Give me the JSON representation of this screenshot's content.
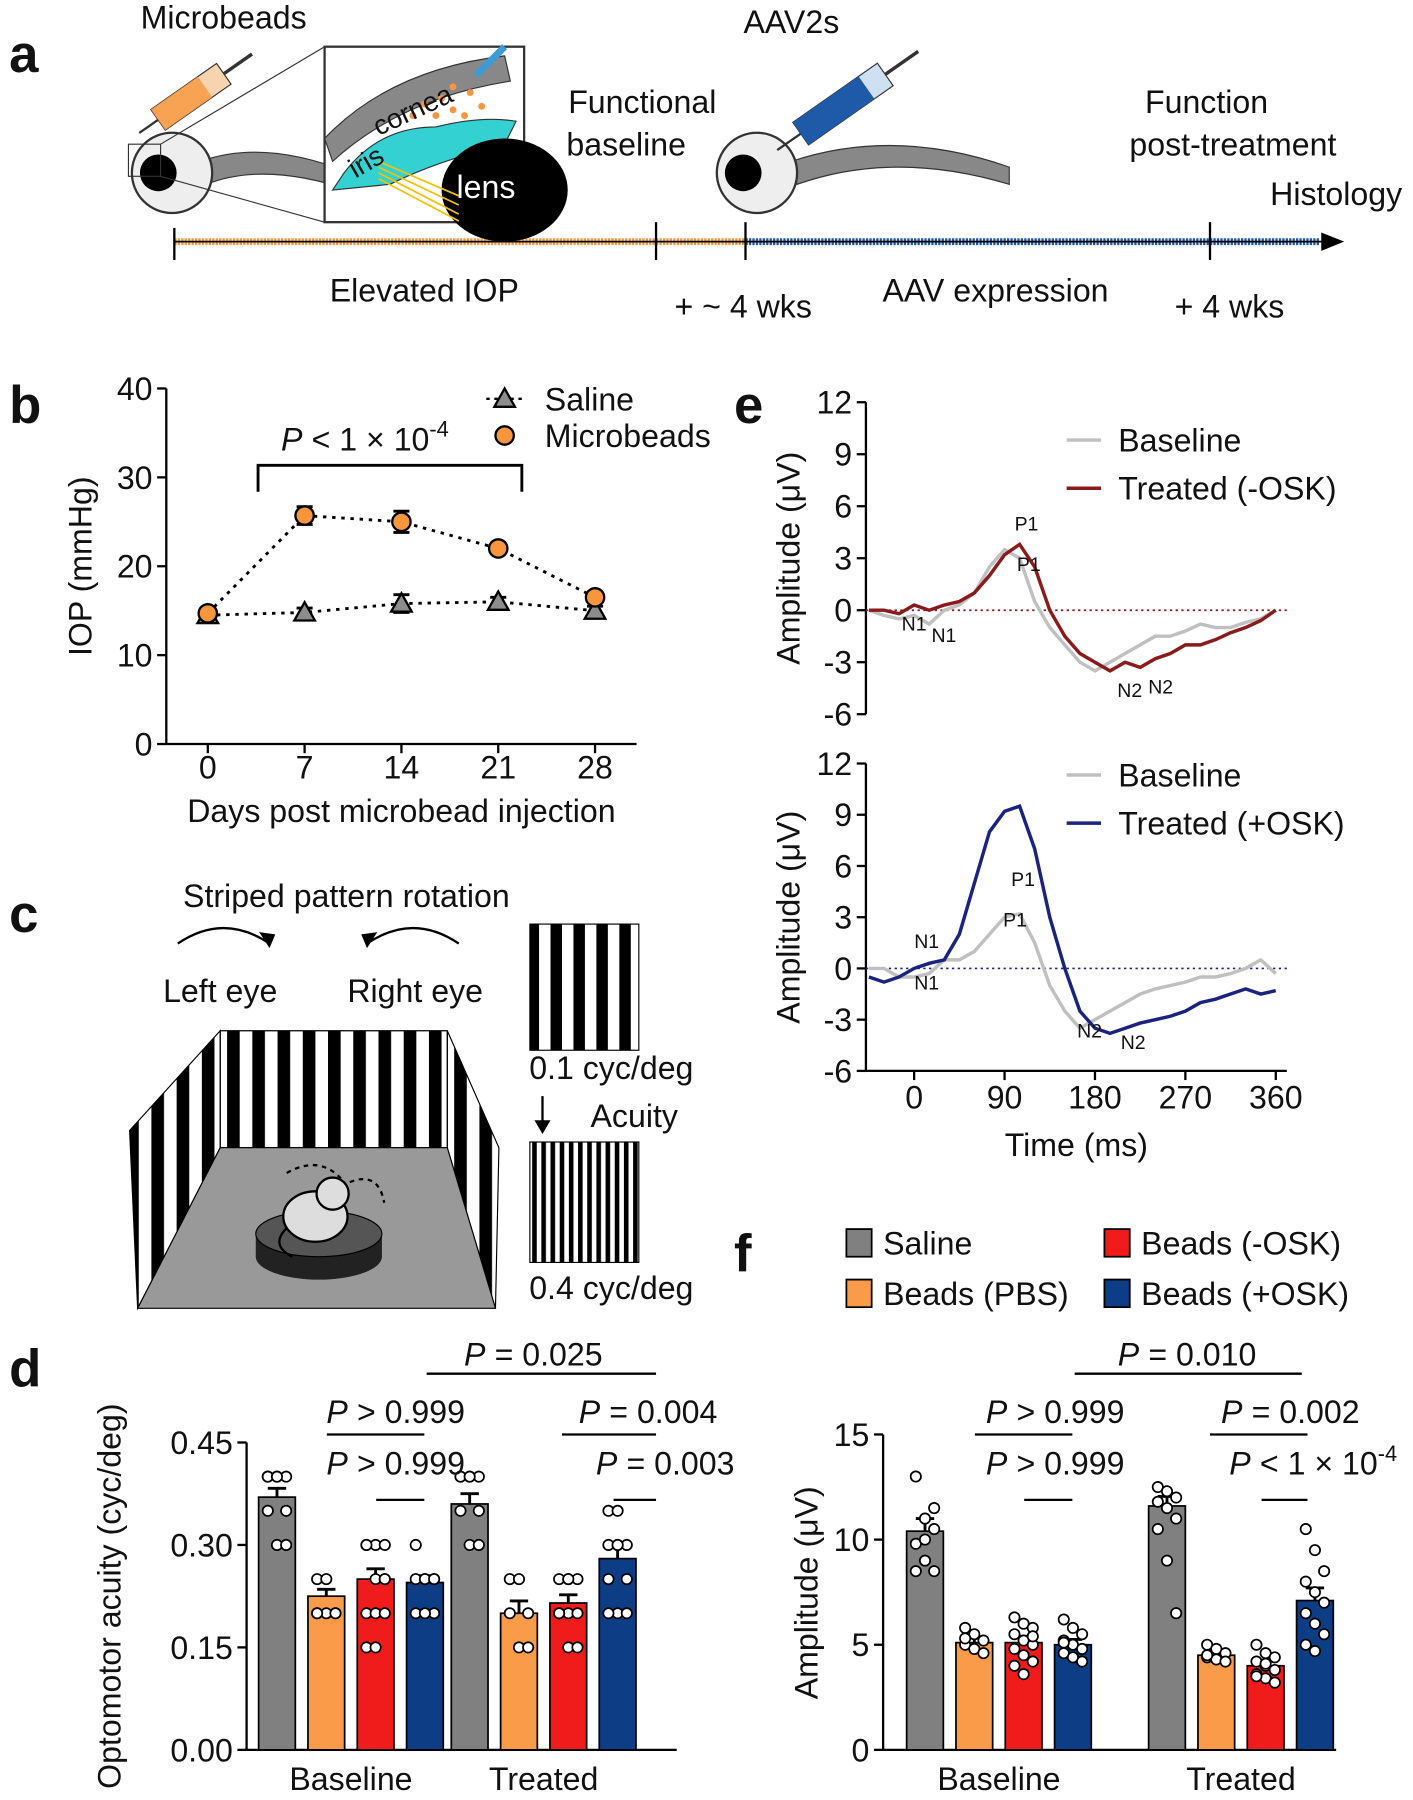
{
  "panel_labels": [
    "a",
    "b",
    "c",
    "d",
    "e",
    "f"
  ],
  "schematic_a": {
    "microbeads": "Microbeads",
    "aav": "AAV2s",
    "inset": [
      "cornea",
      "iris",
      "lens"
    ],
    "functional_baseline": [
      "Functional",
      "baseline"
    ],
    "function_post": [
      "Function",
      "post-treatment"
    ],
    "histology": "Histology",
    "elevated": "Elevated IOP",
    "wks1": "+ ~ 4 wks",
    "aav_expression": "AAV expression",
    "wks2": "+ 4 wks"
  },
  "schematic_c": {
    "title": "Striped pattern rotation",
    "left": "Left eye",
    "right": "Right eye",
    "low": "0.1 cyc/deg",
    "acuity": "Acuity",
    "high": "0.4 cyc/deg"
  },
  "chart_data": [
    {
      "type": "line",
      "x_label": "Days post microbead injection",
      "y_label": "IOP (mmHg)",
      "x": [
        0,
        7,
        14,
        21,
        28
      ],
      "xlim": [
        -3,
        31
      ],
      "xticks": [
        0,
        7,
        14,
        21,
        28
      ],
      "ylim": [
        0,
        40
      ],
      "yticks": [
        0,
        10,
        20,
        30,
        40
      ],
      "series": [
        {
          "name": "Saline",
          "color": "#8c8c8c",
          "marker": "triangle",
          "values": [
            14.5,
            14.8,
            15.8,
            16,
            15
          ],
          "errors": [
            0.5,
            0.5,
            1,
            0.5,
            0.5
          ]
        },
        {
          "name": "Microbeads",
          "color": "#f7963c",
          "marker": "circle",
          "values": [
            14.7,
            25.7,
            25,
            22,
            16.5
          ],
          "errors": [
            0.5,
            1,
            1.2,
            0.5,
            0.5
          ]
        }
      ],
      "annotation": {
        "p": "P",
        "text": "< 1 × 10",
        "exponent": "-4"
      }
    },
    {
      "type": "line",
      "y_label": "Amplitude (μV)",
      "x": [
        -45,
        -30,
        -15,
        0,
        15,
        30,
        45,
        60,
        75,
        90,
        105,
        120,
        135,
        150,
        165,
        180,
        195,
        210,
        225,
        240,
        255,
        270,
        285,
        300,
        315,
        330,
        345,
        360
      ],
      "xlim": [
        -48,
        371
      ],
      "ylim": [
        -6,
        12
      ],
      "yticks": [
        -6,
        -3,
        0,
        3,
        6,
        9,
        12
      ],
      "series": [
        {
          "name": "Baseline",
          "color": "#c0c0c0",
          "values": [
            0,
            -0.3,
            -0.5,
            -0.3,
            -0.8,
            0,
            0.3,
            1,
            2.5,
            3.5,
            3,
            0.5,
            -1,
            -2,
            -3,
            -3.5,
            -3,
            -2.5,
            -2,
            -1.5,
            -1.5,
            -1.2,
            -0.8,
            -1,
            -1,
            -0.7,
            -0.5,
            0
          ]
        },
        {
          "name": "Treated (-OSK)",
          "color": "#8b1a1a",
          "values": [
            0,
            0,
            -0.2,
            0.3,
            0,
            0.3,
            0.5,
            1,
            2,
            3.2,
            3.8,
            2.5,
            0,
            -1.5,
            -2.5,
            -3,
            -3.5,
            -3,
            -3.3,
            -2.8,
            -2.5,
            -2,
            -2,
            -1.7,
            -1.3,
            -1,
            -0.6,
            0
          ]
        }
      ],
      "peak_labels": [
        "P1",
        "P1",
        "N1",
        "N1",
        "N2",
        "N2"
      ]
    },
    {
      "type": "line",
      "y_label": "Amplitude (μV)",
      "x_label": "Time (ms)",
      "x": [
        -45,
        -30,
        -15,
        0,
        15,
        30,
        45,
        60,
        75,
        90,
        105,
        120,
        135,
        150,
        165,
        180,
        195,
        210,
        225,
        240,
        255,
        270,
        285,
        300,
        315,
        330,
        345,
        360
      ],
      "xlim": [
        -48,
        371
      ],
      "xticks": [
        0,
        90,
        180,
        270,
        360
      ],
      "ylim": [
        -6,
        12
      ],
      "yticks": [
        -6,
        -3,
        0,
        3,
        6,
        9,
        12
      ],
      "series": [
        {
          "name": "Baseline",
          "color": "#c0c0c0",
          "values": [
            0,
            0,
            -0.5,
            -0.5,
            -0.3,
            0.5,
            0.5,
            1,
            2,
            3,
            3.2,
            1.5,
            -1,
            -2.5,
            -3.5,
            -3,
            -2.5,
            -2,
            -1.5,
            -1.2,
            -1,
            -0.8,
            -0.5,
            -0.5,
            -0.3,
            0,
            0.5,
            -0.3
          ]
        },
        {
          "name": "Treated (+OSK)",
          "color": "#1a237e",
          "values": [
            -0.5,
            -0.8,
            -0.5,
            0,
            0.3,
            0.5,
            2,
            5,
            8,
            9.2,
            9.5,
            7,
            3,
            0,
            -2.5,
            -3.5,
            -3.8,
            -3.5,
            -3.2,
            -3,
            -2.8,
            -2.5,
            -2,
            -1.8,
            -1.5,
            -1.2,
            -1.5,
            -1.3
          ]
        }
      ],
      "peak_labels": [
        "P1",
        "P1",
        "N1",
        "N1",
        "N2",
        "N2"
      ]
    },
    {
      "type": "bar",
      "y_label": "Optomotor acuity (cyc/deg)",
      "categories": [
        "Baseline",
        "Treated"
      ],
      "ylim": [
        0,
        0.45
      ],
      "yticks": [
        {
          "value": 0,
          "label": "0.00"
        },
        0.15,
        {
          "value": 0.3,
          "label": "0.30"
        },
        0.45
      ],
      "series": [
        {
          "color": "#808080",
          "values": [
            0.37,
            0.36
          ],
          "errors": [
            0.013,
            0.015
          ],
          "points": [
            [
              0.4,
              0.4,
              0.4,
              0.4,
              0.4,
              0.35,
              0.35,
              0.3,
              0.3
            ],
            [
              0.4,
              0.4,
              0.4,
              0.4,
              0.4,
              0.35,
              0.35,
              0.3,
              0.3
            ]
          ]
        },
        {
          "color": "#fa9b4a",
          "values": [
            0.225,
            0.2
          ],
          "errors": [
            0.01,
            0.018
          ],
          "points": [
            [
              0.25,
              0.25,
              0.2,
              0.2,
              0.2,
              0.2,
              0.2
            ],
            [
              0.25,
              0.25,
              0.2,
              0.2,
              0.15,
              0.15
            ]
          ]
        },
        {
          "color": "#f01c1c",
          "values": [
            0.25,
            0.215
          ],
          "errors": [
            0.015,
            0.012
          ],
          "points": [
            [
              0.3,
              0.3,
              0.3,
              0.3,
              0.25,
              0.25,
              0.2,
              0.2,
              0.2,
              0.15,
              0.15,
              0.25
            ],
            [
              0.25,
              0.25,
              0.25,
              0.2,
              0.2,
              0.2,
              0.2,
              0.15,
              0.15,
              0.2,
              0.25
            ]
          ]
        },
        {
          "color": "#0d3e85",
          "values": [
            0.245,
            0.28
          ],
          "errors": [
            0.01,
            0.018
          ],
          "points": [
            [
              0.3,
              0.25,
              0.25,
              0.25,
              0.25,
              0.2,
              0.2,
              0.2,
              0.25
            ],
            [
              0.35,
              0.35,
              0.3,
              0.3,
              0.3,
              0.25,
              0.25,
              0.2,
              0.2,
              0.2,
              0.3
            ]
          ]
        }
      ],
      "comparisons": [
        {
          "p": "P",
          "text": "= 0.025"
        },
        {
          "p": "P",
          "text": "> 0.999"
        },
        {
          "p": "P",
          "text": "> 0.999"
        },
        {
          "p": "P",
          "text": "= 0.004"
        },
        {
          "p": "P",
          "text": "= 0.003"
        }
      ]
    },
    {
      "type": "bar",
      "y_label": "Amplitude (μV)",
      "categories": [
        "Baseline",
        "Treated"
      ],
      "ylim": [
        0,
        15
      ],
      "yticks": [
        0,
        5,
        10,
        15
      ],
      "series": [
        {
          "name": "Saline",
          "color": "#808080",
          "values": [
            10.4,
            11.6
          ],
          "errors": [
            0.6,
            0.45
          ],
          "points": [
            [
              13,
              11,
              10.5,
              9.8,
              9,
              8.5,
              8.5,
              10,
              11.5
            ],
            [
              12.5,
              12.3,
              12,
              11.8,
              11.5,
              11,
              10.5,
              9,
              6.5
            ]
          ]
        },
        {
          "name": "Beads (PBS)",
          "color": "#fa9b4a",
          "values": [
            5.1,
            4.5
          ],
          "errors": [
            0.25,
            0.2
          ],
          "points": [
            [
              5.8,
              5.5,
              5.2,
              5,
              4.8,
              4.6,
              5.3
            ],
            [
              5,
              4.8,
              4.6,
              4.4,
              4.3,
              4.2,
              4.5
            ]
          ]
        },
        {
          "name": "Beads (-OSK)",
          "color": "#f01c1c",
          "values": [
            5.1,
            4
          ],
          "errors": [
            0.3,
            0.25
          ],
          "points": [
            [
              6.3,
              6,
              5.8,
              5.5,
              5.2,
              5,
              4.8,
              4.5,
              4.2,
              4,
              3.6,
              5.4
            ],
            [
              5,
              4.6,
              4.4,
              4.2,
              4,
              3.8,
              3.6,
              3.4,
              3.2,
              3.5,
              4.1
            ]
          ]
        },
        {
          "name": "Beads (+OSK)",
          "color": "#0d3e85",
          "values": [
            5,
            7.1
          ],
          "errors": [
            0.25,
            0.6
          ],
          "points": [
            [
              6.2,
              5.8,
              5.5,
              5.2,
              5,
              4.8,
              4.6,
              4.4,
              4.2,
              5.1
            ],
            [
              10.5,
              9.5,
              8.5,
              8,
              7.5,
              7,
              6.5,
              6,
              5.5,
              5,
              4.7
            ]
          ]
        }
      ],
      "comparisons": [
        {
          "p": "P",
          "text": "= 0.010"
        },
        {
          "p": "P",
          "text": "> 0.999"
        },
        {
          "p": "P",
          "text": "> 0.999"
        },
        {
          "p": "P",
          "text": "= 0.002"
        },
        {
          "p": "P",
          "text": "< 1 × 10",
          "exponent": "-4"
        }
      ]
    }
  ]
}
